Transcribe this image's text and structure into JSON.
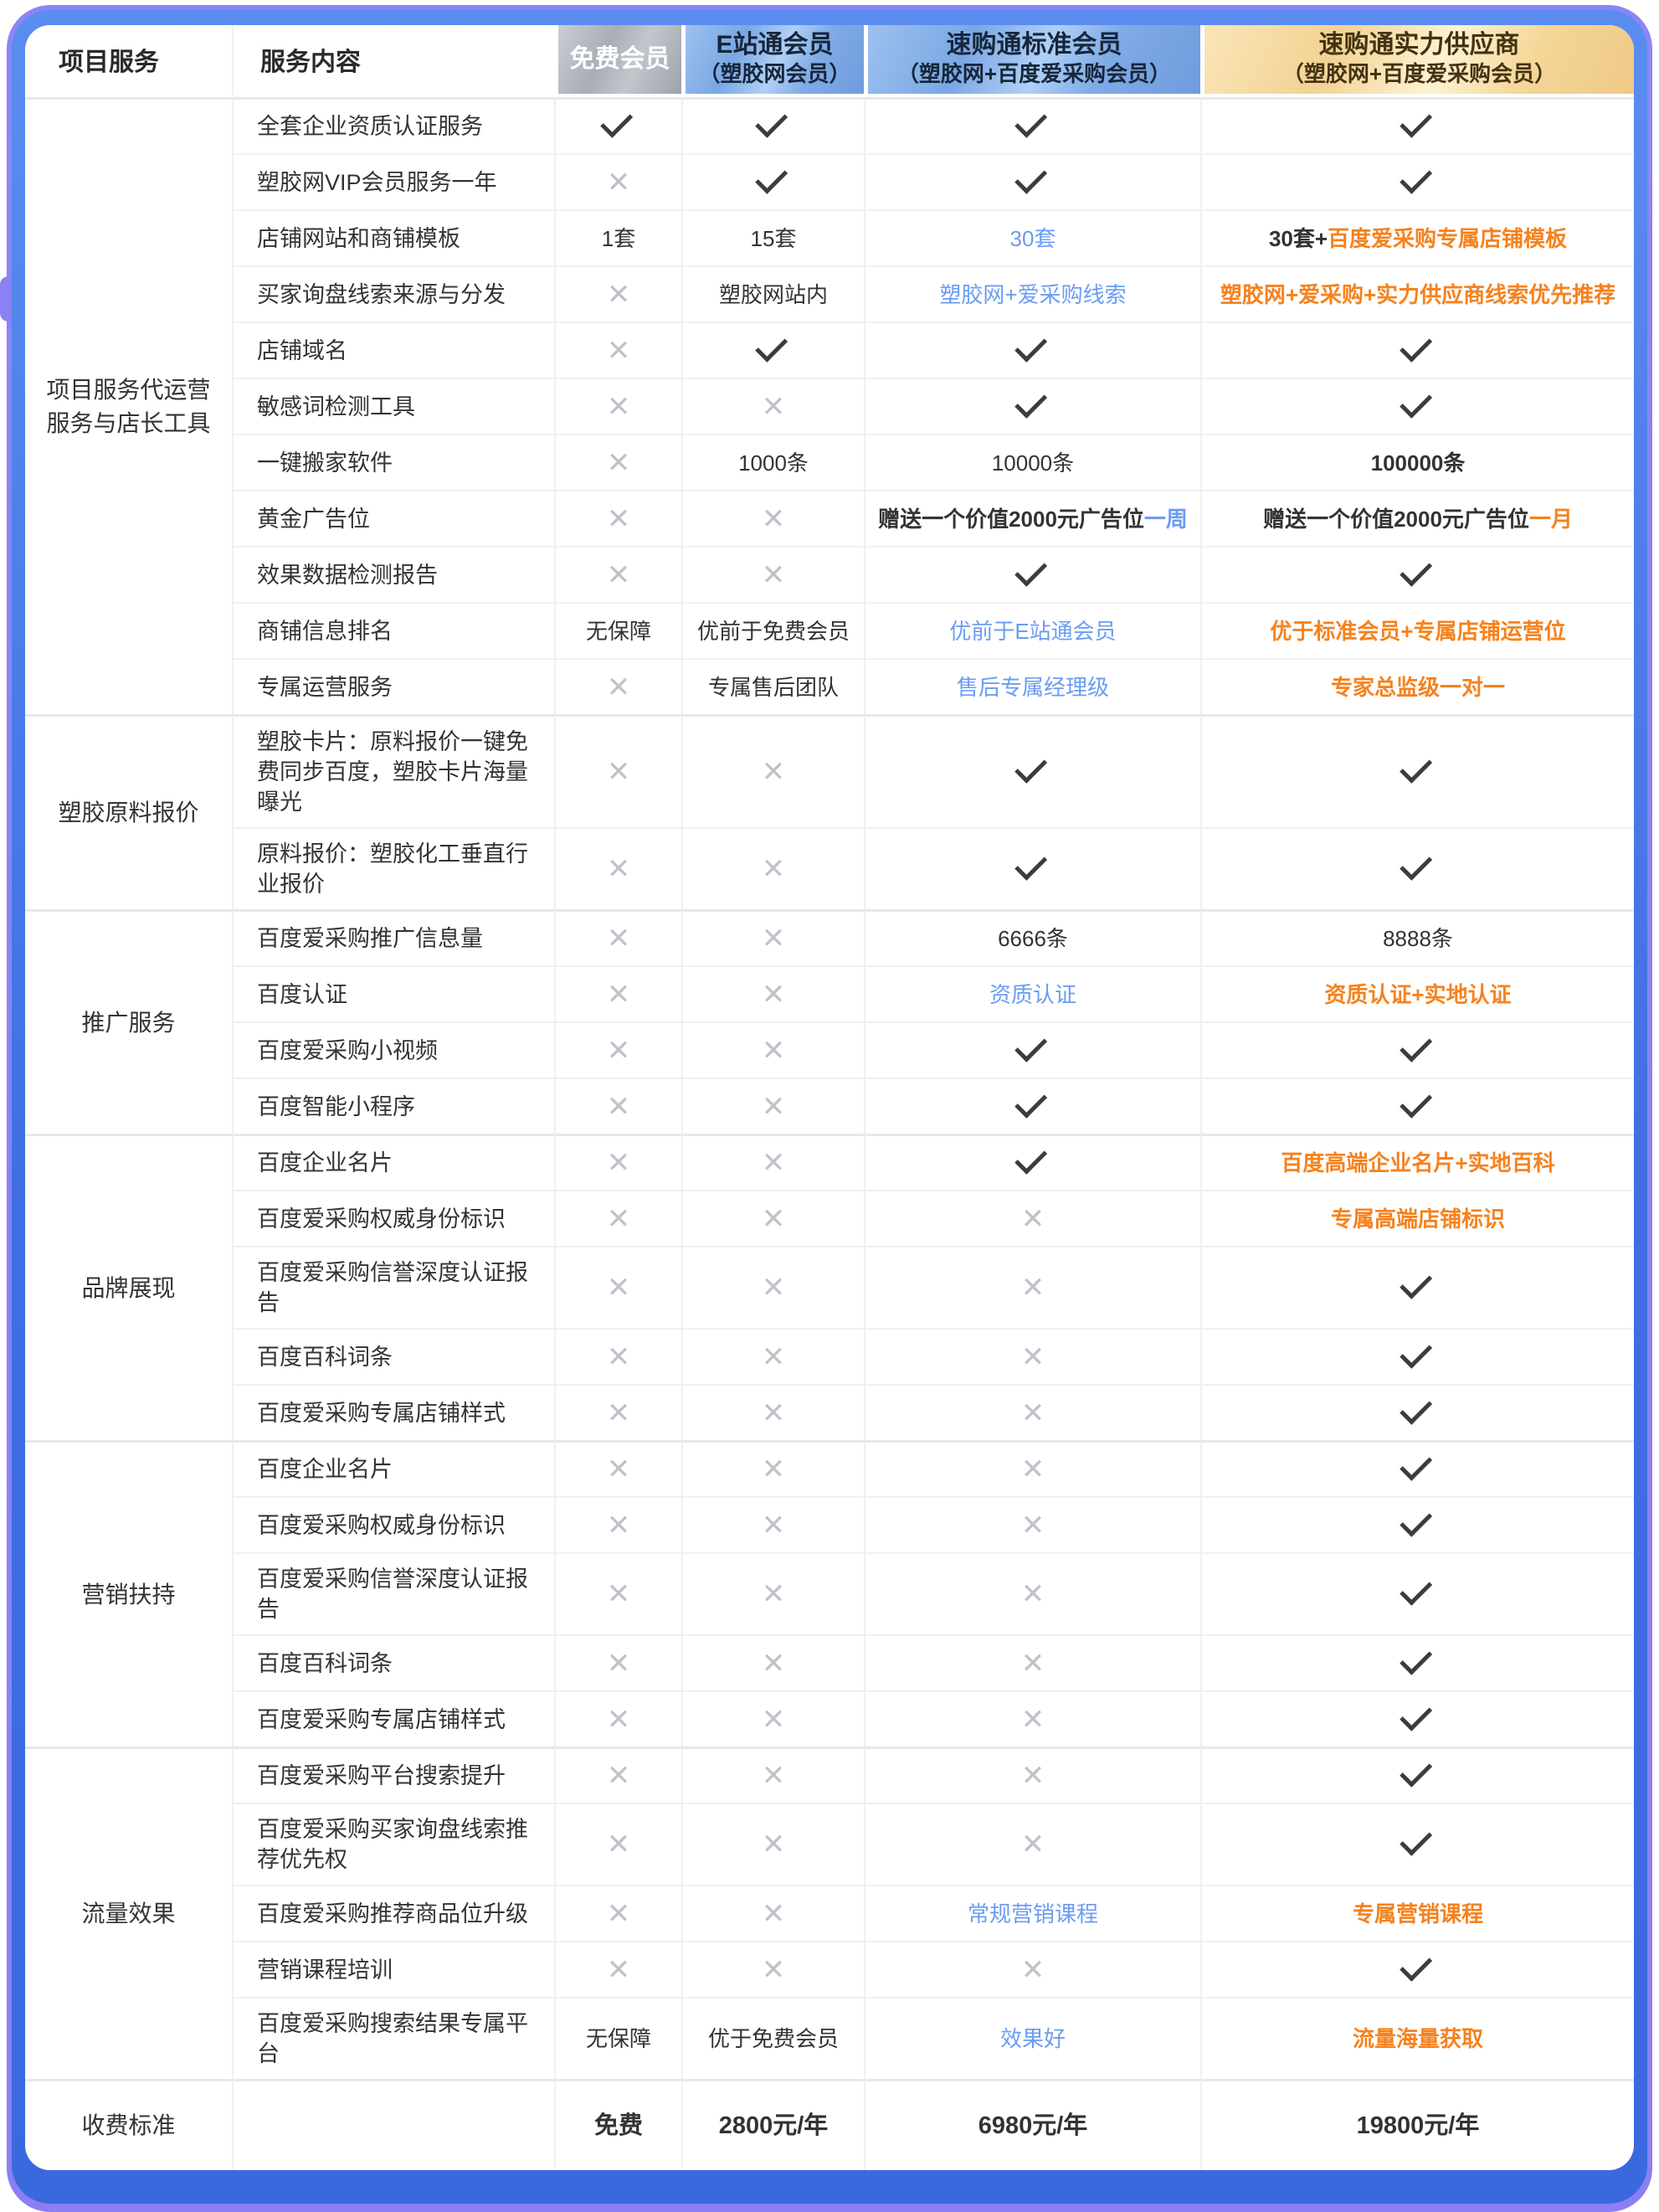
{
  "colors": {
    "frame_blue": "#3f6ee2",
    "frame_purple": "#8c7ff3",
    "plan_gray": "#a9adb5",
    "plan_blue": "#7aa7e4",
    "plan_gold": "#f3d293",
    "blue_text": "#6b9cf2",
    "orange_text": "#f5821e",
    "check": "#3c3c3c",
    "cross": "#bec2c9"
  },
  "header": {
    "project_col": "项目服务",
    "content_col": "服务内容",
    "plans": [
      {
        "id": "free",
        "line1": "免费会员",
        "line2": "",
        "theme": "gray"
      },
      {
        "id": "e-zhantong",
        "line1": "E站通会员",
        "line2": "（塑胶网会员）",
        "theme": "blue"
      },
      {
        "id": "sugoutong-standard",
        "line1": "速购通标准会员",
        "line2": "（塑胶网+百度爱采购会员）",
        "theme": "blue"
      },
      {
        "id": "sugoutong-supplier",
        "line1": "速购通实力供应商",
        "line2": "（塑胶网+百度爱采购会员）",
        "theme": "gold"
      }
    ]
  },
  "groups": [
    {
      "category": "项目服务代运营服务与店长工具",
      "rows": [
        {
          "label": "全套企业资质认证服务",
          "cells": [
            {
              "kind": "check"
            },
            {
              "kind": "check"
            },
            {
              "kind": "check"
            },
            {
              "kind": "check"
            }
          ]
        },
        {
          "label": "塑胶网VIP会员服务一年",
          "cells": [
            {
              "kind": "cross"
            },
            {
              "kind": "check"
            },
            {
              "kind": "check"
            },
            {
              "kind": "check"
            }
          ]
        },
        {
          "label": "店铺网站和商铺模板",
          "cells": [
            {
              "kind": "text",
              "parts": [
                {
                  "text": "1套",
                  "style": "plain"
                }
              ]
            },
            {
              "kind": "text",
              "parts": [
                {
                  "text": "15套",
                  "style": "plain"
                }
              ]
            },
            {
              "kind": "text",
              "parts": [
                {
                  "text": "30套",
                  "style": "blue"
                }
              ]
            },
            {
              "kind": "text",
              "parts": [
                {
                  "text": "30套+",
                  "style": "bold"
                },
                {
                  "text": "百度爱采购专属店铺模板",
                  "style": "orange"
                }
              ]
            }
          ]
        },
        {
          "label": "买家询盘线索来源与分发",
          "cells": [
            {
              "kind": "cross"
            },
            {
              "kind": "text",
              "parts": [
                {
                  "text": "塑胶网站内",
                  "style": "plain"
                }
              ]
            },
            {
              "kind": "text",
              "parts": [
                {
                  "text": "塑胶网+爱采购线索",
                  "style": "blue"
                }
              ]
            },
            {
              "kind": "text",
              "parts": [
                {
                  "text": "塑胶网+爱采购+实力供应商线索优先推荐",
                  "style": "orange"
                }
              ]
            }
          ]
        },
        {
          "label": "店铺域名",
          "cells": [
            {
              "kind": "cross"
            },
            {
              "kind": "check"
            },
            {
              "kind": "check"
            },
            {
              "kind": "check"
            }
          ]
        },
        {
          "label": "敏感词检测工具",
          "cells": [
            {
              "kind": "cross"
            },
            {
              "kind": "cross"
            },
            {
              "kind": "check"
            },
            {
              "kind": "check"
            }
          ]
        },
        {
          "label": "一键搬家软件",
          "cells": [
            {
              "kind": "cross"
            },
            {
              "kind": "text",
              "parts": [
                {
                  "text": "1000条",
                  "style": "plain"
                }
              ]
            },
            {
              "kind": "text",
              "parts": [
                {
                  "text": "10000条",
                  "style": "plain"
                }
              ]
            },
            {
              "kind": "text",
              "parts": [
                {
                  "text": "100000条",
                  "style": "bold"
                }
              ]
            }
          ]
        },
        {
          "label": "黄金广告位",
          "cells": [
            {
              "kind": "cross"
            },
            {
              "kind": "cross"
            },
            {
              "kind": "text",
              "parts": [
                {
                  "text": "赠送一个价值2000元广告位",
                  "style": "bold"
                },
                {
                  "text": "一周",
                  "style": "blue-b"
                }
              ]
            },
            {
              "kind": "text",
              "parts": [
                {
                  "text": "赠送一个价值2000元广告位",
                  "style": "bold"
                },
                {
                  "text": "一月",
                  "style": "orange"
                }
              ]
            }
          ]
        },
        {
          "label": "效果数据检测报告",
          "cells": [
            {
              "kind": "cross"
            },
            {
              "kind": "cross"
            },
            {
              "kind": "check"
            },
            {
              "kind": "check"
            }
          ]
        },
        {
          "label": "商铺信息排名",
          "cells": [
            {
              "kind": "text",
              "parts": [
                {
                  "text": "无保障",
                  "style": "plain"
                }
              ]
            },
            {
              "kind": "text",
              "parts": [
                {
                  "text": "优前于免费会员",
                  "style": "plain"
                }
              ]
            },
            {
              "kind": "text",
              "parts": [
                {
                  "text": "优前于E站通会员",
                  "style": "blue"
                }
              ]
            },
            {
              "kind": "text",
              "parts": [
                {
                  "text": "优于标准会员+专属店铺运营位",
                  "style": "orange"
                }
              ]
            }
          ]
        },
        {
          "label": "专属运营服务",
          "cells": [
            {
              "kind": "cross"
            },
            {
              "kind": "text",
              "parts": [
                {
                  "text": "专属售后团队",
                  "style": "plain"
                }
              ]
            },
            {
              "kind": "text",
              "parts": [
                {
                  "text": "售后专属经理级",
                  "style": "blue"
                }
              ]
            },
            {
              "kind": "text",
              "parts": [
                {
                  "text": "专家总监级一对一",
                  "style": "orange"
                }
              ]
            }
          ]
        }
      ]
    },
    {
      "category": "塑胶原料报价",
      "rows": [
        {
          "label": "塑胶卡片：原料报价一键免费同步百度，塑胶卡片海量曝光",
          "cells": [
            {
              "kind": "cross"
            },
            {
              "kind": "cross"
            },
            {
              "kind": "check"
            },
            {
              "kind": "check"
            }
          ]
        },
        {
          "label": "原料报价：塑胶化工垂直行业报价",
          "cells": [
            {
              "kind": "cross"
            },
            {
              "kind": "cross"
            },
            {
              "kind": "check"
            },
            {
              "kind": "check"
            }
          ]
        }
      ]
    },
    {
      "category": "推广服务",
      "rows": [
        {
          "label": "百度爱采购推广信息量",
          "cells": [
            {
              "kind": "cross"
            },
            {
              "kind": "cross"
            },
            {
              "kind": "text",
              "parts": [
                {
                  "text": "6666条",
                  "style": "plain"
                }
              ]
            },
            {
              "kind": "text",
              "parts": [
                {
                  "text": "8888条",
                  "style": "plain"
                }
              ]
            }
          ]
        },
        {
          "label": "百度认证",
          "cells": [
            {
              "kind": "cross"
            },
            {
              "kind": "cross"
            },
            {
              "kind": "text",
              "parts": [
                {
                  "text": "资质认证",
                  "style": "blue"
                }
              ]
            },
            {
              "kind": "text",
              "parts": [
                {
                  "text": "资质认证+实地认证",
                  "style": "orange"
                }
              ]
            }
          ]
        },
        {
          "label": "百度爱采购小视频",
          "cells": [
            {
              "kind": "cross"
            },
            {
              "kind": "cross"
            },
            {
              "kind": "check"
            },
            {
              "kind": "check"
            }
          ]
        },
        {
          "label": "百度智能小程序",
          "cells": [
            {
              "kind": "cross"
            },
            {
              "kind": "cross"
            },
            {
              "kind": "check"
            },
            {
              "kind": "check"
            }
          ]
        }
      ]
    },
    {
      "category": "品牌展现",
      "rows": [
        {
          "label": "百度企业名片",
          "cells": [
            {
              "kind": "cross"
            },
            {
              "kind": "cross"
            },
            {
              "kind": "check"
            },
            {
              "kind": "text",
              "parts": [
                {
                  "text": "百度高端企业名片+实地百科",
                  "style": "orange"
                }
              ]
            }
          ]
        },
        {
          "label": "百度爱采购权威身份标识",
          "cells": [
            {
              "kind": "cross"
            },
            {
              "kind": "cross"
            },
            {
              "kind": "cross"
            },
            {
              "kind": "text",
              "parts": [
                {
                  "text": "专属高端店铺标识",
                  "style": "orange"
                }
              ]
            }
          ]
        },
        {
          "label": "百度爱采购信誉深度认证报告",
          "cells": [
            {
              "kind": "cross"
            },
            {
              "kind": "cross"
            },
            {
              "kind": "cross"
            },
            {
              "kind": "check"
            }
          ]
        },
        {
          "label": "百度百科词条",
          "cells": [
            {
              "kind": "cross"
            },
            {
              "kind": "cross"
            },
            {
              "kind": "cross"
            },
            {
              "kind": "check"
            }
          ]
        },
        {
          "label": "百度爱采购专属店铺样式",
          "cells": [
            {
              "kind": "cross"
            },
            {
              "kind": "cross"
            },
            {
              "kind": "cross"
            },
            {
              "kind": "check"
            }
          ]
        }
      ]
    },
    {
      "category": "营销扶持",
      "rows": [
        {
          "label": "百度企业名片",
          "cells": [
            {
              "kind": "cross"
            },
            {
              "kind": "cross"
            },
            {
              "kind": "cross"
            },
            {
              "kind": "check"
            }
          ]
        },
        {
          "label": "百度爱采购权威身份标识",
          "cells": [
            {
              "kind": "cross"
            },
            {
              "kind": "cross"
            },
            {
              "kind": "cross"
            },
            {
              "kind": "check"
            }
          ]
        },
        {
          "label": "百度爱采购信誉深度认证报告",
          "cells": [
            {
              "kind": "cross"
            },
            {
              "kind": "cross"
            },
            {
              "kind": "cross"
            },
            {
              "kind": "check"
            }
          ]
        },
        {
          "label": "百度百科词条",
          "cells": [
            {
              "kind": "cross"
            },
            {
              "kind": "cross"
            },
            {
              "kind": "cross"
            },
            {
              "kind": "check"
            }
          ]
        },
        {
          "label": "百度爱采购专属店铺样式",
          "cells": [
            {
              "kind": "cross"
            },
            {
              "kind": "cross"
            },
            {
              "kind": "cross"
            },
            {
              "kind": "check"
            }
          ]
        }
      ]
    },
    {
      "category": "流量效果",
      "rows": [
        {
          "label": "百度爱采购平台搜索提升",
          "cells": [
            {
              "kind": "cross"
            },
            {
              "kind": "cross"
            },
            {
              "kind": "cross"
            },
            {
              "kind": "check"
            }
          ]
        },
        {
          "label": "百度爱采购买家询盘线索推荐优先权",
          "cells": [
            {
              "kind": "cross"
            },
            {
              "kind": "cross"
            },
            {
              "kind": "cross"
            },
            {
              "kind": "check"
            }
          ]
        },
        {
          "label": "百度爱采购推荐商品位升级",
          "cells": [
            {
              "kind": "cross"
            },
            {
              "kind": "cross"
            },
            {
              "kind": "text",
              "parts": [
                {
                  "text": "常规营销课程",
                  "style": "blue"
                }
              ]
            },
            {
              "kind": "text",
              "parts": [
                {
                  "text": "专属营销课程",
                  "style": "orange"
                }
              ]
            }
          ]
        },
        {
          "label": "营销课程培训",
          "cells": [
            {
              "kind": "cross"
            },
            {
              "kind": "cross"
            },
            {
              "kind": "cross"
            },
            {
              "kind": "check"
            }
          ]
        },
        {
          "label": "百度爱采购搜索结果专属平台",
          "cells": [
            {
              "kind": "text",
              "parts": [
                {
                  "text": "无保障",
                  "style": "plain"
                }
              ]
            },
            {
              "kind": "text",
              "parts": [
                {
                  "text": "优于免费会员",
                  "style": "plain"
                }
              ]
            },
            {
              "kind": "text",
              "parts": [
                {
                  "text": "效果好",
                  "style": "blue"
                }
              ]
            },
            {
              "kind": "text",
              "parts": [
                {
                  "text": "流量海量获取",
                  "style": "orange"
                }
              ]
            }
          ]
        }
      ]
    },
    {
      "category": "收费标准",
      "is_price": true,
      "rows": [
        {
          "label": "",
          "cells": [
            {
              "kind": "text",
              "parts": [
                {
                  "text": "免费",
                  "style": "bold"
                }
              ]
            },
            {
              "kind": "text",
              "parts": [
                {
                  "text": "2800元/年",
                  "style": "bold"
                }
              ]
            },
            {
              "kind": "text",
              "parts": [
                {
                  "text": "6980元/年",
                  "style": "bold"
                }
              ]
            },
            {
              "kind": "text",
              "parts": [
                {
                  "text": "19800元/年",
                  "style": "bold"
                }
              ]
            }
          ]
        }
      ]
    }
  ]
}
